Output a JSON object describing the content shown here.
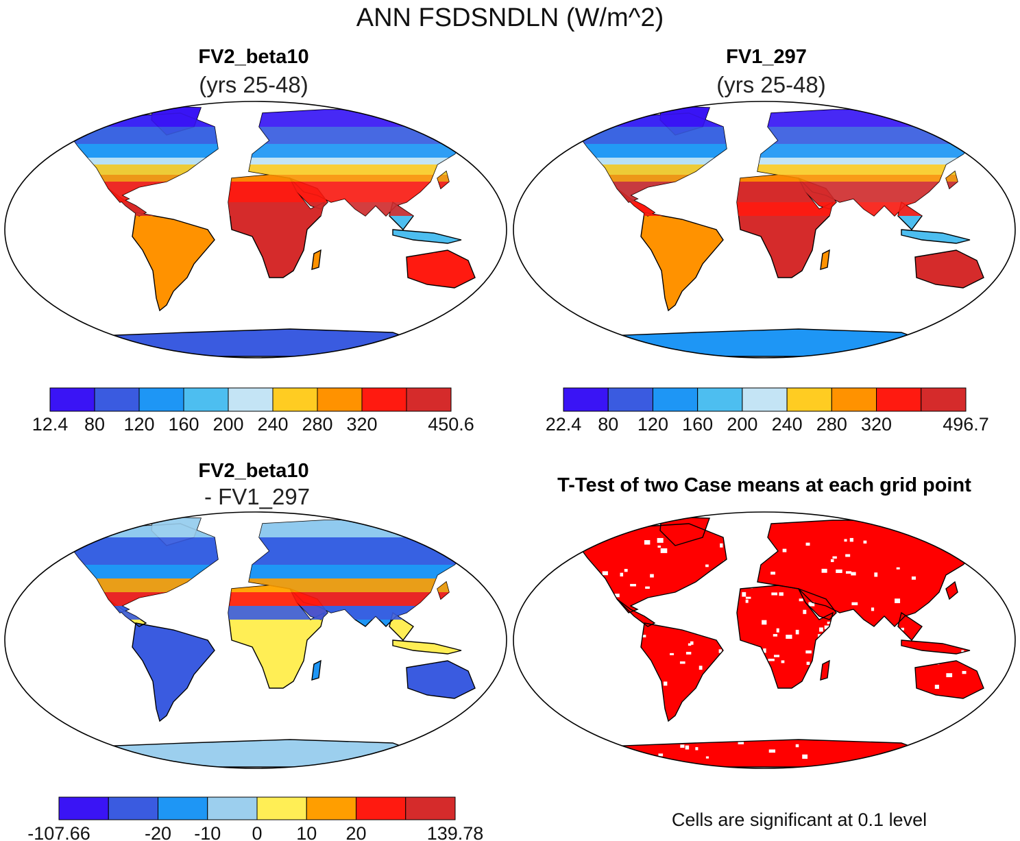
{
  "figure": {
    "title": "ANN FSDSNDLN (W/m^2)"
  },
  "colors": {
    "ocean": "#ffffff",
    "land_outline": "#000000",
    "significance": "#ff0000",
    "abs_scale": [
      "#3a14f5",
      "#3a5be0",
      "#1e96f5",
      "#4dbef0",
      "#c4e4f5",
      "#ffcc22",
      "#ff9200",
      "#ff1a10",
      "#d52b2b"
    ],
    "diff_scale": [
      "#3a14f5",
      "#3a5be0",
      "#1e96f5",
      "#9ccfee",
      "#ffee55",
      "#ff9e00",
      "#ff1a10",
      "#d52b2b"
    ]
  },
  "chart_data": [
    {
      "type": "heatmap",
      "title": "FV2_beta10",
      "subtitle": "(yrs 25-48)",
      "colorbar_labels": [
        "12.4",
        "80",
        "120",
        "160",
        "200",
        "240",
        "280",
        "320",
        "450.6"
      ],
      "colorbar_range": [
        12.4,
        450.6
      ]
    },
    {
      "type": "heatmap",
      "title": "FV1_297",
      "subtitle": "(yrs 25-48)",
      "colorbar_labels": [
        "22.4",
        "80",
        "120",
        "160",
        "200",
        "240",
        "280",
        "320",
        "496.7"
      ],
      "colorbar_range": [
        22.4,
        496.7
      ]
    },
    {
      "type": "heatmap",
      "title": "FV2_beta10",
      "subtitle": "- FV1_297",
      "colorbar_labels": [
        "-107.66",
        "-20",
        "-10",
        "0",
        "10",
        "20",
        "139.78"
      ],
      "colorbar_range": [
        -107.66,
        139.78
      ]
    },
    {
      "type": "heatmap",
      "title": "T-Test of two Case means at each grid point",
      "note": "Cells are significant at 0.1 level"
    }
  ]
}
